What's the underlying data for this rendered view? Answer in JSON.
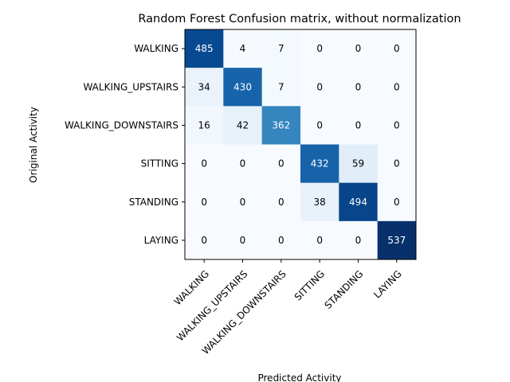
{
  "chart_data": {
    "type": "heatmap",
    "title": "Random Forest Confusion matrix, without normalization",
    "xlabel": "Predicted Activity",
    "ylabel": "Original Activity",
    "x_categories": [
      "WALKING",
      "WALKING_UPSTAIRS",
      "WALKING_DOWNSTAIRS",
      "SITTING",
      "STANDING",
      "LAYING"
    ],
    "y_categories": [
      "WALKING",
      "WALKING_UPSTAIRS",
      "WALKING_DOWNSTAIRS",
      "SITTING",
      "STANDING",
      "LAYING"
    ],
    "matrix": [
      [
        485,
        4,
        7,
        0,
        0,
        0
      ],
      [
        34,
        430,
        7,
        0,
        0,
        0
      ],
      [
        16,
        42,
        362,
        0,
        0,
        0
      ],
      [
        0,
        0,
        0,
        432,
        59,
        0
      ],
      [
        0,
        0,
        0,
        38,
        494,
        0
      ],
      [
        0,
        0,
        0,
        0,
        0,
        537
      ]
    ],
    "colormap": "Blues",
    "value_range": [
      0,
      537
    ],
    "grid": false,
    "colors": {
      "low": "#f7fbff",
      "mid": "#6baed6",
      "high": "#08306b",
      "text_dark": "#000000",
      "text_light": "#ffffff"
    }
  }
}
